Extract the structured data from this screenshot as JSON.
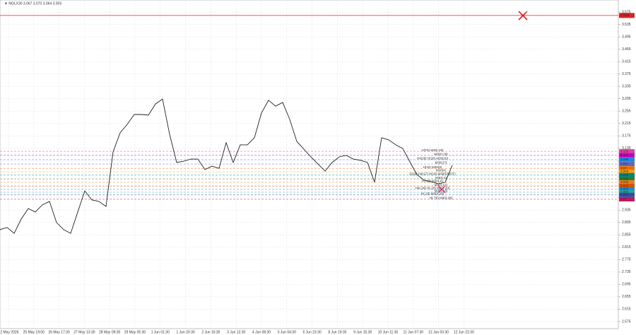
{
  "chart_data": {
    "type": "line",
    "title": "▼ NGLX30  3.067 3.070 3.064 3.066",
    "xtick_labels": [
      "22 May 2026",
      "25 May 19:00",
      "26 May 17:30",
      "27 May 13:30",
      "28 May 09:30",
      "29 May 05:30",
      "1 Jun 01:30",
      "1 Jun 20:30",
      "2 Jun 16:30",
      "3 Jun 12:30",
      "4 Jun 08:30",
      "5 Jun 04:30",
      "5 Jun 23:30",
      "8 Jun 19:30",
      "9 Jun 15:30",
      "10 Jun 11:30",
      "11 Jun 07:30",
      "12 Jun 03:30",
      "12 Jun 22:30"
    ],
    "series": [
      {
        "name": "NGLX30",
        "color": "#222222",
        "values": [
          2.872,
          2.879,
          2.86,
          2.906,
          2.94,
          2.929,
          2.952,
          2.963,
          2.895,
          2.872,
          2.86,
          2.929,
          2.997,
          2.968,
          2.963,
          2.947,
          3.123,
          3.185,
          3.212,
          3.244,
          3.244,
          3.242,
          3.278,
          3.294,
          3.18,
          3.089,
          3.093,
          3.1,
          3.1,
          3.066,
          3.077,
          3.07,
          3.153,
          3.089,
          3.146,
          3.146,
          3.169,
          3.249,
          3.29,
          3.271,
          3.283,
          3.228,
          3.157,
          3.132,
          3.107,
          3.084,
          3.061,
          3.089,
          3.107,
          3.112,
          3.1,
          3.096,
          3.089,
          3.025,
          3.169,
          3.162,
          3.146,
          3.134,
          3.091,
          3.05,
          3.032,
          3.027,
          3.02,
          3.025,
          3.08
        ]
      }
    ],
    "ylim": [
      2.552,
      3.614
    ],
    "yticks": [
      3.575,
      3.535,
      3.495,
      3.455,
      3.415,
      3.375,
      3.335,
      3.295,
      3.255,
      3.215,
      3.175,
      3.135,
      3.095,
      3.055,
      3.015,
      2.975,
      2.935,
      2.895,
      2.855,
      2.815,
      2.775,
      2.735,
      2.695,
      2.655,
      2.615,
      2.575
    ],
    "grid": true,
    "alert_line": {
      "value": 3.564,
      "color": "#e0201e"
    },
    "levels": [
      {
        "value": 3.125,
        "label": "H(T8) M30(-28)",
        "color": "#e040a0"
      },
      {
        "value": 3.112,
        "label": "M30(+18)",
        "color": "#c000c0"
      },
      {
        "value": 3.098,
        "label": "H4(28) H(28) M30(20)",
        "color": "#1e88e5"
      },
      {
        "value": 3.084,
        "label": "M30(17)",
        "color": "#5c6bc0"
      },
      {
        "value": 3.07,
        "label": "H(18) M30(8)",
        "color": "#ef6c00"
      },
      {
        "value": 3.059,
        "label": "M30(4)",
        "color": "#f39c12"
      },
      {
        "value": 3.048,
        "label": "D(28) H4(17) H(18) M30(PIVOT)",
        "color": "#00897b"
      },
      {
        "value": 3.036,
        "label": "M30(-4)",
        "color": "#2e7d32"
      },
      {
        "value": 3.025,
        "label": "H(-18) M30(-8)",
        "color": "#e67e22"
      },
      {
        "value": 3.013,
        "label": "M30(-17)",
        "color": "#d35400"
      },
      {
        "value": 3.002,
        "label": "H4(-28) H(-28) M30(-20)",
        "color": "#1e88e5"
      },
      {
        "value": 2.993,
        "label": "M30(-18)",
        "color": "#26a69a"
      },
      {
        "value": 2.984,
        "label": "H(-18) M30(-28)",
        "color": "#3949ab"
      },
      {
        "value": 2.97,
        "label": "H(-T8) M30(-28)",
        "color": "#c2185b"
      }
    ]
  }
}
